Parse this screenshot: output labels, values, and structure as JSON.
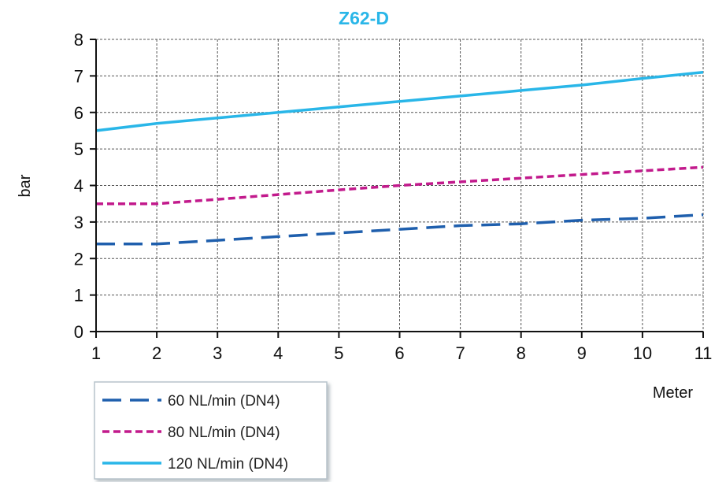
{
  "chart_data": {
    "type": "line",
    "title": "Z62-D",
    "xlabel": "Meter",
    "ylabel": "bar",
    "xlim": [
      1,
      11
    ],
    "ylim": [
      0,
      8
    ],
    "x_ticks": [
      1,
      2,
      3,
      4,
      5,
      6,
      7,
      8,
      9,
      10,
      11
    ],
    "y_ticks": [
      0,
      1,
      2,
      3,
      4,
      5,
      6,
      7,
      8
    ],
    "grid": true,
    "legend_position": "bottom-left",
    "colors": {
      "title": "#29b6e8",
      "axes": "#111111",
      "grid": "#555555"
    },
    "x": [
      1,
      2,
      3,
      4,
      5,
      6,
      7,
      8,
      9,
      10,
      11
    ],
    "series": [
      {
        "name": "60 NL/min (DN4)",
        "color": "#1f5fad",
        "dash": "long-dash",
        "values": [
          2.4,
          2.4,
          2.5,
          2.6,
          2.7,
          2.8,
          2.9,
          2.95,
          3.05,
          3.1,
          3.2
        ]
      },
      {
        "name": "80 NL/min (DN4)",
        "color": "#c21a8c",
        "dash": "short-dash",
        "values": [
          3.5,
          3.5,
          3.62,
          3.75,
          3.88,
          4.0,
          4.1,
          4.2,
          4.3,
          4.4,
          4.5
        ]
      },
      {
        "name": "120 NL/min (DN4)",
        "color": "#29b6e8",
        "dash": "solid",
        "values": [
          5.5,
          5.7,
          5.85,
          6.0,
          6.15,
          6.3,
          6.45,
          6.6,
          6.75,
          6.93,
          7.1
        ]
      }
    ]
  }
}
